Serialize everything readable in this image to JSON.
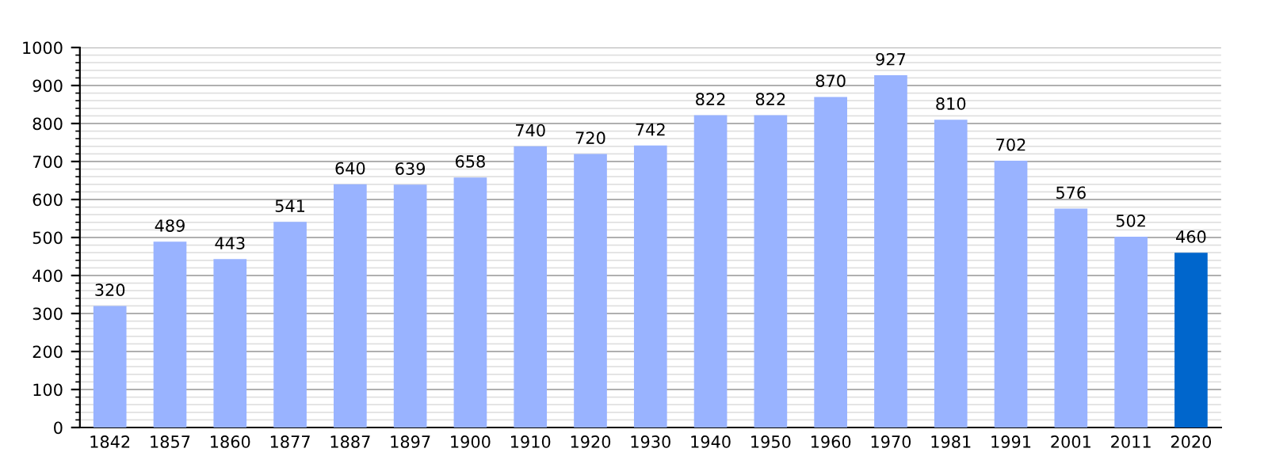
{
  "chart_data": {
    "type": "bar",
    "categories": [
      "1842",
      "1857",
      "1860",
      "1877",
      "1887",
      "1897",
      "1900",
      "1910",
      "1920",
      "1930",
      "1940",
      "1950",
      "1960",
      "1970",
      "1981",
      "1991",
      "2001",
      "2011",
      "2020"
    ],
    "values": [
      320,
      489,
      443,
      541,
      640,
      639,
      658,
      740,
      720,
      742,
      822,
      822,
      870,
      927,
      810,
      702,
      576,
      502,
      460
    ],
    "colors": [
      "#99b3ff",
      "#99b3ff",
      "#99b3ff",
      "#99b3ff",
      "#99b3ff",
      "#99b3ff",
      "#99b3ff",
      "#99b3ff",
      "#99b3ff",
      "#99b3ff",
      "#99b3ff",
      "#99b3ff",
      "#99b3ff",
      "#99b3ff",
      "#99b3ff",
      "#99b3ff",
      "#99b3ff",
      "#99b3ff",
      "#0066cc"
    ],
    "ylim": [
      0,
      1000
    ],
    "yticks": [
      0,
      {
        "value": 20,
        "label": null
      },
      {
        "value": 40,
        "label": null
      },
      {
        "value": 60,
        "label": null
      },
      {
        "value": 80,
        "label": null
      },
      100,
      {
        "value": 120,
        "label": null
      },
      {
        "value": 140,
        "label": null
      },
      {
        "value": 160,
        "label": null
      },
      {
        "value": 180,
        "label": null
      },
      200,
      {
        "value": 220,
        "label": null
      },
      {
        "value": 240,
        "label": null
      },
      {
        "value": 260,
        "label": null
      },
      {
        "value": 280,
        "label": null
      },
      300,
      {
        "value": 320,
        "label": null
      },
      {
        "value": 340,
        "label": null
      },
      {
        "value": 360,
        "label": null
      },
      {
        "value": 380,
        "label": null
      },
      400,
      {
        "value": 420,
        "label": null
      },
      {
        "value": 440,
        "label": null
      },
      {
        "value": 460,
        "label": null
      },
      {
        "value": 480,
        "label": null
      },
      500,
      {
        "value": 520,
        "label": null
      },
      {
        "value": 540,
        "label": null
      },
      {
        "value": 560,
        "label": null
      },
      {
        "value": 580,
        "label": null
      },
      600,
      {
        "value": 620,
        "label": null
      },
      {
        "value": 640,
        "label": null
      },
      {
        "value": 660,
        "label": null
      },
      {
        "value": 680,
        "label": null
      },
      700,
      {
        "value": 720,
        "label": null
      },
      {
        "value": 740,
        "label": null
      },
      {
        "value": 760,
        "label": null
      },
      {
        "value": 780,
        "label": null
      },
      800,
      {
        "value": 820,
        "label": null
      },
      {
        "value": 840,
        "label": null
      },
      {
        "value": 860,
        "label": null
      },
      {
        "value": 880,
        "label": null
      },
      900,
      {
        "value": 920,
        "label": null
      },
      {
        "value": 940,
        "label": null
      },
      {
        "value": 960,
        "label": null
      },
      {
        "value": 980,
        "label": null
      },
      1000
    ],
    "grid": "y",
    "data_labels": true
  }
}
